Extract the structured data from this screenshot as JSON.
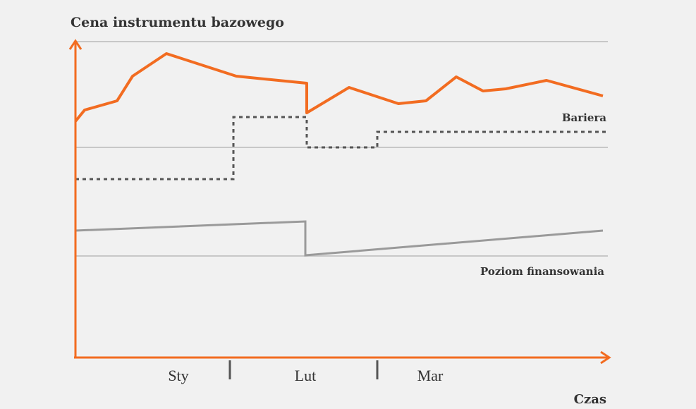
{
  "title": "Cena instrumentu bazowego",
  "labels": {
    "barrier": "Bariera",
    "funding": "Poziom finansowania"
  },
  "months": [
    "Sty",
    "Lut",
    "Mar"
  ],
  "x_axis_label": "Czas"
}
